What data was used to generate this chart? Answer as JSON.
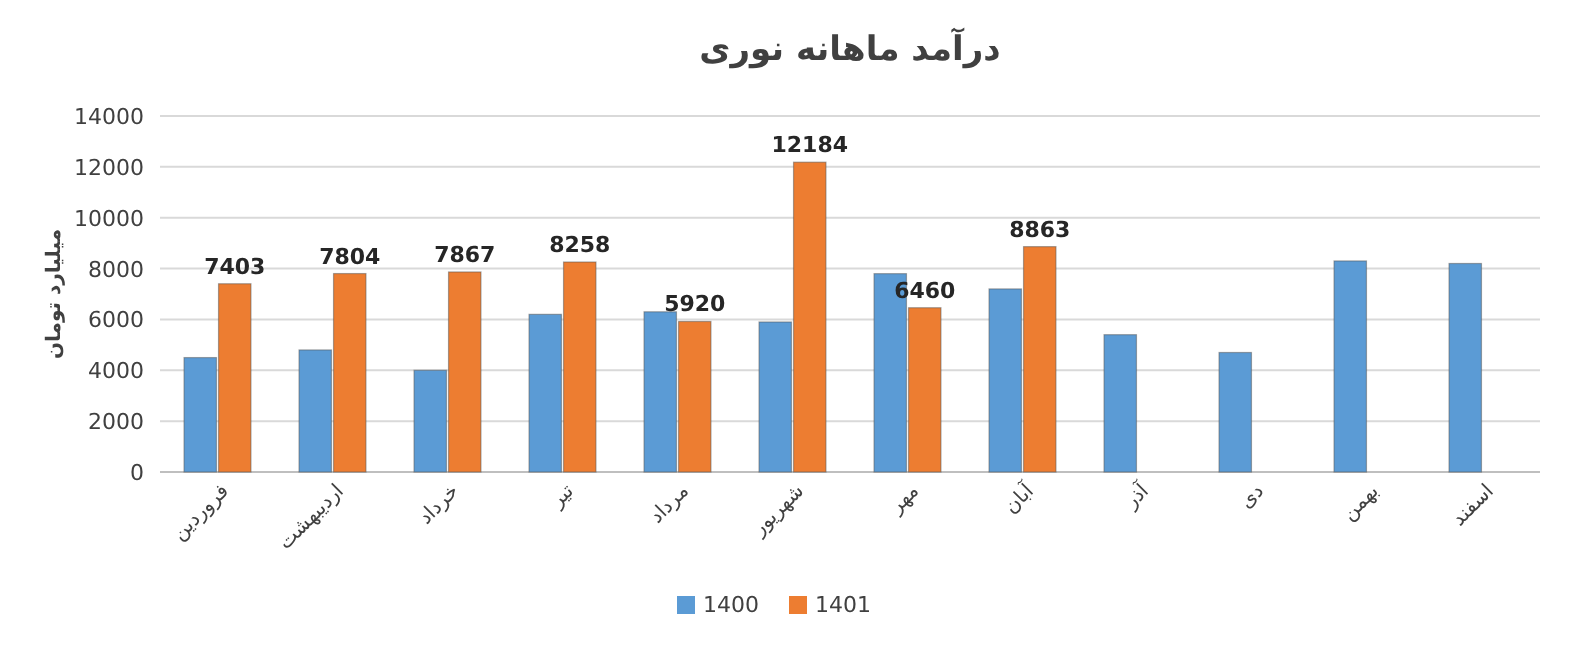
{
  "chart_data": {
    "type": "bar",
    "title": "درآمد ماهانه نوری",
    "ylabel": "میلیارد تومان",
    "categories": [
      "فروردین",
      "اردیبهشت",
      "خرداد",
      "تیر",
      "مرداد",
      "شهریور",
      "مهر",
      "آبان",
      "آذر",
      "دی",
      "بهمن",
      "اسفند"
    ],
    "series": [
      {
        "name": "1400",
        "color": "#5b9bd5",
        "values": [
          4500,
          4800,
          4000,
          6200,
          6300,
          5900,
          7800,
          7200,
          5400,
          4700,
          8300,
          8200
        ]
      },
      {
        "name": "1401",
        "color": "#ed7d31",
        "values": [
          7403,
          7804,
          7867,
          8258,
          5920,
          12184,
          6460,
          8863,
          null,
          null,
          null,
          null
        ],
        "value_labels": [
          "7403",
          "7804",
          "7867",
          "8258",
          "5920",
          "12184",
          "6460",
          "8863",
          null,
          null,
          null,
          null
        ]
      }
    ],
    "ylim": [
      0,
      14000
    ],
    "yticks": [
      0,
      2000,
      4000,
      6000,
      8000,
      10000,
      12000,
      14000
    ],
    "grid": "y",
    "legend": "bottom"
  }
}
